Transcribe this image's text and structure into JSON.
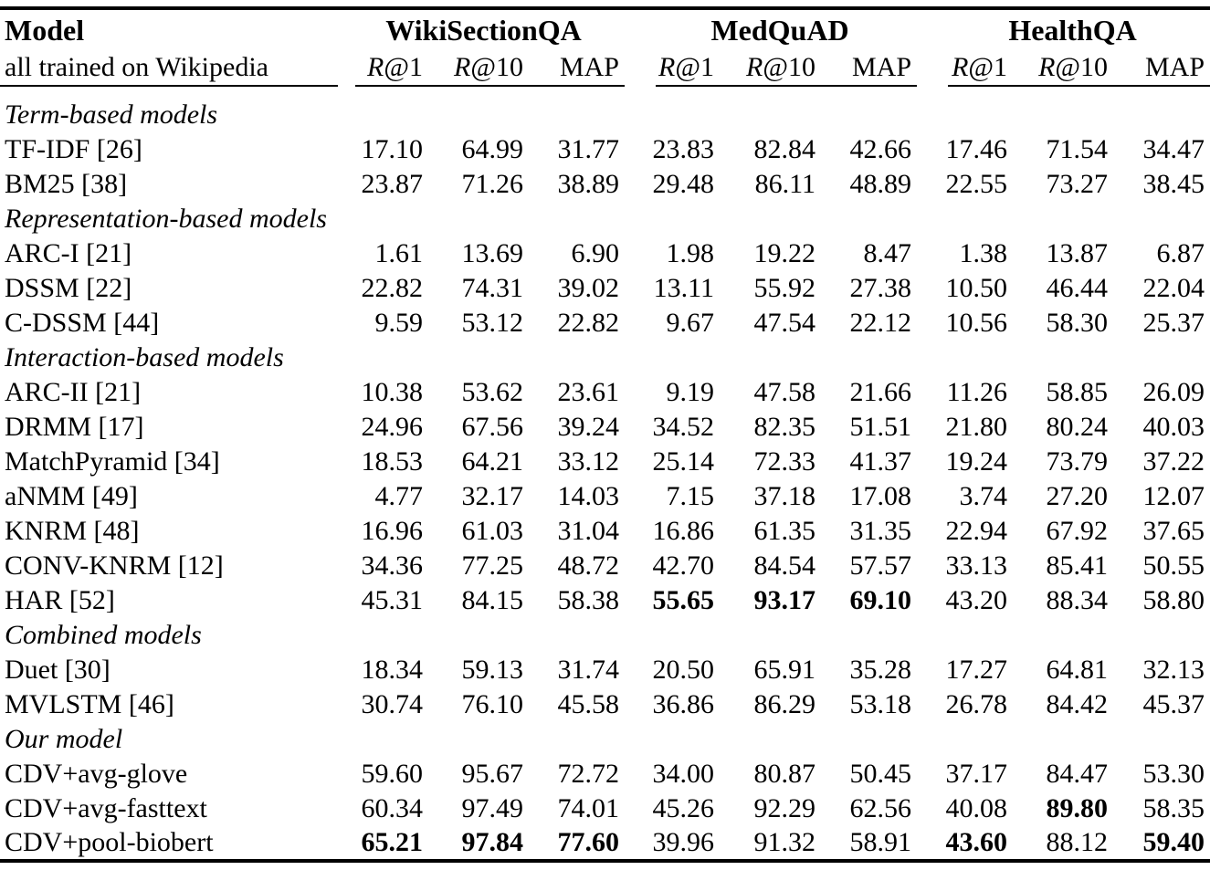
{
  "colors": {
    "ink": "#000000",
    "background": "#ffffff"
  },
  "table": {
    "header": {
      "model_title": "Model",
      "model_subtitle": "all trained on Wikipedia",
      "groups": [
        {
          "label": "WikiSectionQA",
          "metrics": [
            "R@1",
            "R@10",
            "MAP"
          ]
        },
        {
          "label": "MedQuAD",
          "metrics": [
            "R@1",
            "R@10",
            "MAP"
          ]
        },
        {
          "label": "HealthQA",
          "metrics": [
            "R@1",
            "R@10",
            "MAP"
          ]
        }
      ]
    },
    "sections": [
      {
        "label": "Term-based models",
        "rows": [
          {
            "model": "TF-IDF [26]",
            "values": [
              "17.10",
              "64.99",
              "31.77",
              "23.83",
              "82.84",
              "42.66",
              "17.46",
              "71.54",
              "34.47"
            ],
            "bold": []
          },
          {
            "model": "BM25 [38]",
            "values": [
              "23.87",
              "71.26",
              "38.89",
              "29.48",
              "86.11",
              "48.89",
              "22.55",
              "73.27",
              "38.45"
            ],
            "bold": []
          }
        ]
      },
      {
        "label": "Representation-based models",
        "rows": [
          {
            "model": "ARC-I [21]",
            "values": [
              "1.61",
              "13.69",
              "6.90",
              "1.98",
              "19.22",
              "8.47",
              "1.38",
              "13.87",
              "6.87"
            ],
            "bold": []
          },
          {
            "model": "DSSM [22]",
            "values": [
              "22.82",
              "74.31",
              "39.02",
              "13.11",
              "55.92",
              "27.38",
              "10.50",
              "46.44",
              "22.04"
            ],
            "bold": []
          },
          {
            "model": "C-DSSM [44]",
            "values": [
              "9.59",
              "53.12",
              "22.82",
              "9.67",
              "47.54",
              "22.12",
              "10.56",
              "58.30",
              "25.37"
            ],
            "bold": []
          }
        ]
      },
      {
        "label": "Interaction-based models",
        "rows": [
          {
            "model": "ARC-II [21]",
            "values": [
              "10.38",
              "53.62",
              "23.61",
              "9.19",
              "47.58",
              "21.66",
              "11.26",
              "58.85",
              "26.09"
            ],
            "bold": []
          },
          {
            "model": "DRMM [17]",
            "values": [
              "24.96",
              "67.56",
              "39.24",
              "34.52",
              "82.35",
              "51.51",
              "21.80",
              "80.24",
              "40.03"
            ],
            "bold": []
          },
          {
            "model": "MatchPyramid [34]",
            "values": [
              "18.53",
              "64.21",
              "33.12",
              "25.14",
              "72.33",
              "41.37",
              "19.24",
              "73.79",
              "37.22"
            ],
            "bold": []
          },
          {
            "model": "aNMM [49]",
            "values": [
              "4.77",
              "32.17",
              "14.03",
              "7.15",
              "37.18",
              "17.08",
              "3.74",
              "27.20",
              "12.07"
            ],
            "bold": []
          },
          {
            "model": "KNRM [48]",
            "values": [
              "16.96",
              "61.03",
              "31.04",
              "16.86",
              "61.35",
              "31.35",
              "22.94",
              "67.92",
              "37.65"
            ],
            "bold": []
          },
          {
            "model": "CONV-KNRM [12]",
            "values": [
              "34.36",
              "77.25",
              "48.72",
              "42.70",
              "84.54",
              "57.57",
              "33.13",
              "85.41",
              "50.55"
            ],
            "bold": []
          },
          {
            "model": "HAR [52]",
            "values": [
              "45.31",
              "84.15",
              "58.38",
              "55.65",
              "93.17",
              "69.10",
              "43.20",
              "88.34",
              "58.80"
            ],
            "bold": [
              3,
              4,
              5
            ]
          }
        ]
      },
      {
        "label": "Combined models",
        "rows": [
          {
            "model": "Duet [30]",
            "values": [
              "18.34",
              "59.13",
              "31.74",
              "20.50",
              "65.91",
              "35.28",
              "17.27",
              "64.81",
              "32.13"
            ],
            "bold": []
          },
          {
            "model": "MVLSTM [46]",
            "values": [
              "30.74",
              "76.10",
              "45.58",
              "36.86",
              "86.29",
              "53.18",
              "26.78",
              "84.42",
              "45.37"
            ],
            "bold": []
          }
        ]
      },
      {
        "label": "Our model",
        "rows": [
          {
            "model": "CDV+avg-glove",
            "values": [
              "59.60",
              "95.67",
              "72.72",
              "34.00",
              "80.87",
              "50.45",
              "37.17",
              "84.47",
              "53.30"
            ],
            "bold": []
          },
          {
            "model": "CDV+avg-fasttext",
            "values": [
              "60.34",
              "97.49",
              "74.01",
              "45.26",
              "92.29",
              "62.56",
              "40.08",
              "89.80",
              "58.35"
            ],
            "bold": [
              7
            ]
          },
          {
            "model": "CDV+pool-biobert",
            "values": [
              "65.21",
              "97.84",
              "77.60",
              "39.96",
              "91.32",
              "58.91",
              "43.60",
              "88.12",
              "59.40"
            ],
            "bold": [
              0,
              1,
              2,
              6,
              8
            ]
          }
        ]
      }
    ]
  }
}
